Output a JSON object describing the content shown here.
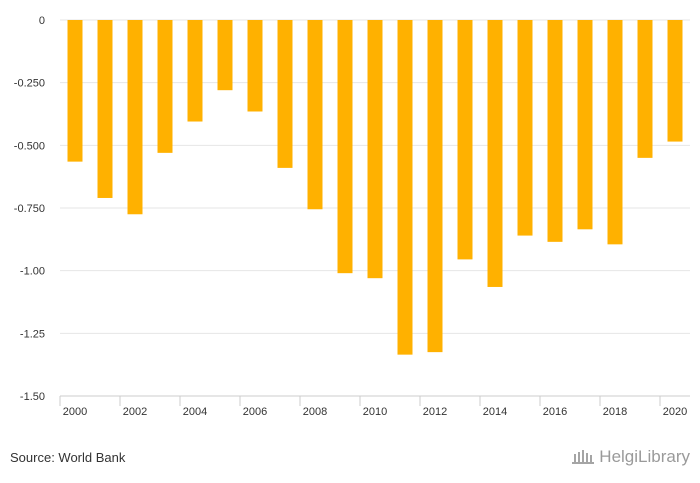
{
  "chart_data": {
    "type": "bar",
    "x": [
      2000,
      2001,
      2002,
      2003,
      2004,
      2005,
      2006,
      2007,
      2008,
      2009,
      2010,
      2011,
      2012,
      2013,
      2014,
      2015,
      2016,
      2017,
      2018,
      2019,
      2020
    ],
    "x_tick_labels": [
      "2000",
      "2002",
      "2004",
      "2006",
      "2008",
      "2010",
      "2012",
      "2014",
      "2016",
      "2018",
      "2020"
    ],
    "values": [
      -0.565,
      -0.71,
      -0.775,
      -0.53,
      -0.405,
      -0.28,
      -0.365,
      -0.59,
      -0.755,
      -1.01,
      -1.03,
      -1.335,
      -1.325,
      -0.955,
      -1.065,
      -0.86,
      -0.885,
      -0.835,
      -0.895,
      -0.55,
      -0.485
    ],
    "ylim": [
      -1.5,
      0
    ],
    "y_ticks": [
      0,
      -0.25,
      -0.5,
      -0.75,
      -1.0,
      -1.25,
      -1.5
    ],
    "y_tick_labels": [
      "0",
      "-0.250",
      "-0.500",
      "-0.750",
      "-1.00",
      "-1.25",
      "-1.50"
    ],
    "title": "",
    "xlabel": "",
    "ylabel": "",
    "grid": true,
    "bar_color": "#FFB100",
    "grid_color": "#E6E6E6"
  },
  "footer": {
    "source": "Source: World Bank",
    "logo_text": "HelgiLibrary",
    "logo_icon": "library-columns-icon"
  }
}
